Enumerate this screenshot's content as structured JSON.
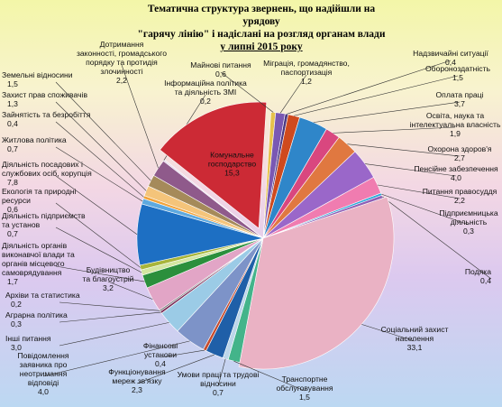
{
  "chart_data": {
    "type": "pie",
    "title_lines": [
      "Тематична структура звернень, що надійшли на урядову",
      "\"гарячу лінію\" і надіслані на розгляд органам влади",
      "у липні 2015 року"
    ],
    "slices": [
      {
        "label_lines": [
          "Надзвичайні ситуації"
        ],
        "value": "0,4",
        "color": "#4d3a82"
      },
      {
        "label_lines": [
          "Обороноздатність"
        ],
        "value": "1,5",
        "color": "#cf4a1e"
      },
      {
        "label_lines": [
          "Оплата праці"
        ],
        "value": "3,7",
        "color": "#2f86c9"
      },
      {
        "label_lines": [
          "Освіта, наука та",
          "інтелектуальна власність"
        ],
        "value": "1,9",
        "color": "#d9477f"
      },
      {
        "label_lines": [
          "Охорона здоров'я"
        ],
        "value": "2,7",
        "color": "#e07840"
      },
      {
        "label_lines": [
          "Пенсійне забезпечення"
        ],
        "value": "4,0",
        "color": "#9a67c9"
      },
      {
        "label_lines": [
          "Питання правосуддя"
        ],
        "value": "2,2",
        "color": "#f07cb0"
      },
      {
        "label_lines": [
          "Підприємницька",
          "діяльність"
        ],
        "value": "0,3",
        "color": "#27a7d8"
      },
      {
        "label_lines": [
          "Подяка"
        ],
        "value": "0,4",
        "color": "#8f5fb6"
      },
      {
        "label_lines": [
          "Соціальний захист",
          "населення"
        ],
        "value": "33,1",
        "color": "#eab2c4"
      },
      {
        "label_lines": [
          "Транспортне",
          "обслуговування"
        ],
        "value": "1,5",
        "color": "#43b48a"
      },
      {
        "label_lines": [
          "Умови праці та трудові",
          "відносини"
        ],
        "value": "0,7",
        "color": "#bcd6ea"
      },
      {
        "label_lines": [
          "Функціонування",
          "мереж зв'язку"
        ],
        "value": "2,3",
        "color": "#1f5fa8"
      },
      {
        "label_lines": [
          "Фінансові",
          "установи"
        ],
        "value": "0,4",
        "color": "#c74b2d"
      },
      {
        "label_lines": [
          "Повідомлення",
          "заявника про",
          "неотримання",
          "відповіді"
        ],
        "value": "4,0",
        "color": "#7d93c8"
      },
      {
        "label_lines": [
          "Інші питання"
        ],
        "value": "3,0",
        "color": "#9bcbe6"
      },
      {
        "label_lines": [
          "Аграрна політика"
        ],
        "value": "0,3",
        "color": "#7a2f59"
      },
      {
        "label_lines": [
          "Архіви та статистика"
        ],
        "value": "0,2",
        "color": "#6e6e6e"
      },
      {
        "label_lines": [
          "Будівництво",
          "та благоустрій"
        ],
        "value": "3,2",
        "color": "#e2a5c6"
      },
      {
        "label_lines": [
          "Діяльність органів",
          "виконавчої влади та",
          "органів місцевого",
          "самоврядування"
        ],
        "value": "1,7",
        "color": "#2b8f3c"
      },
      {
        "label_lines": [
          "Діяльність підприємств",
          "та установ"
        ],
        "value": "0,7",
        "color": "#d3e6a1"
      },
      {
        "label_lines": [
          "Екологія та природні",
          "ресурси"
        ],
        "value": "0,6",
        "color": "#a8b53a"
      },
      {
        "label_lines": [
          "Діяльність посадових і",
          "службових осіб, корупція"
        ],
        "value": "7,8",
        "color": "#1d6fc3"
      },
      {
        "label_lines": [
          "Житлова політика"
        ],
        "value": "0,7",
        "color": "#5ea9df"
      },
      {
        "label_lines": [
          "Зайнятість та безробіття"
        ],
        "value": "0,4",
        "color": "#f2a33a"
      },
      {
        "label_lines": [
          "Захист прав споживачів"
        ],
        "value": "1,3",
        "color": "#f4c47a"
      },
      {
        "label_lines": [
          "Земельні відносини"
        ],
        "value": "1,5",
        "color": "#a58a5a"
      },
      {
        "label_lines": [
          "Дотримання",
          "законності, громадського",
          "порядку та протидія",
          "злочинності"
        ],
        "value": "2,2",
        "color": "#8f5a8b"
      },
      {
        "label_lines": [
          "Інформаційна політика",
          "та діяльність ЗМІ"
        ],
        "value": "0,2",
        "color": "#e3d4ea"
      },
      {
        "label_lines": [
          "Комунальне",
          "господарство"
        ],
        "value": "15,3",
        "color": "#cc2a35"
      },
      {
        "label_lines": [
          "Майнові питання"
        ],
        "value": "0,6",
        "color": "#e6c24c"
      },
      {
        "label_lines": [
          "Міграція, громадянство,",
          "паспортизація"
        ],
        "value": "1,2",
        "color": "#7a58b3"
      }
    ]
  }
}
